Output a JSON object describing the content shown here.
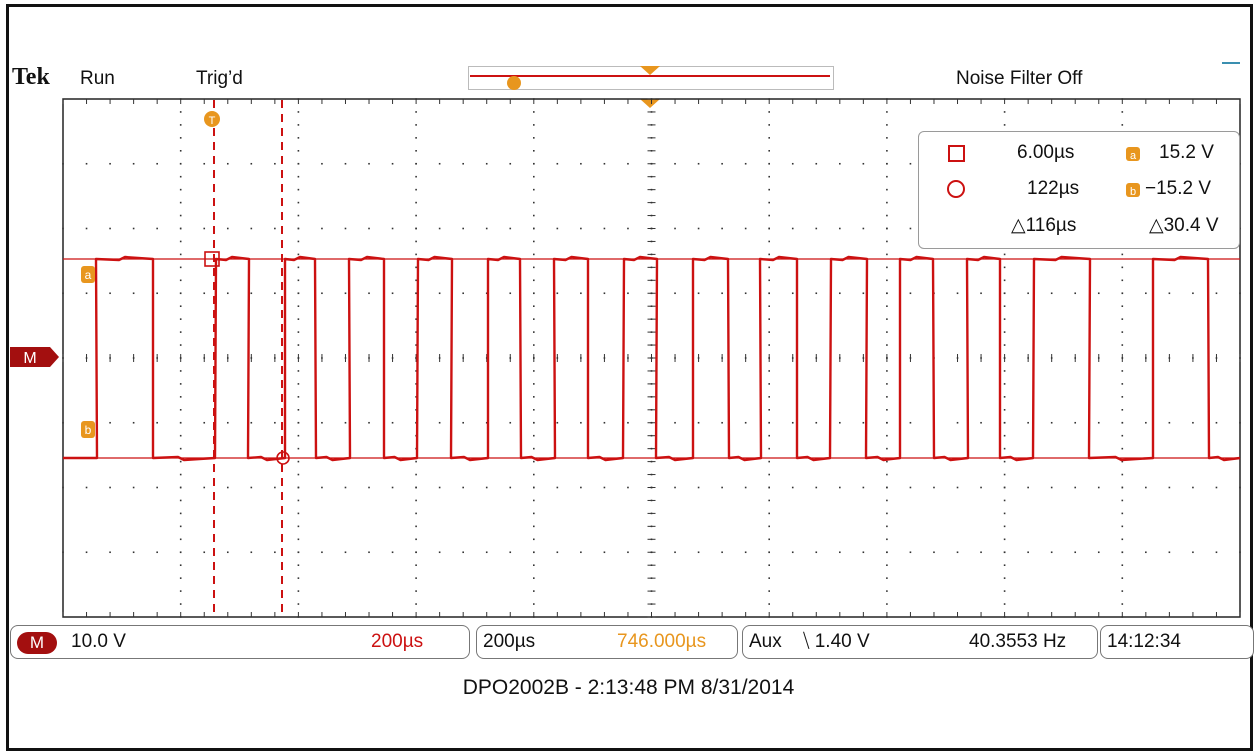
{
  "header": {
    "brand": "Tek",
    "run_state": "Run",
    "trigger_state": "Trig’d",
    "noise_filter": "Noise Filter Off",
    "trigger_marker": "T"
  },
  "waveform": {
    "channel_color": "#cc1111",
    "high_level_v": 15.2,
    "low_level_v": -15.2,
    "cursor_a_label": "a",
    "cursor_b_label": "b",
    "ref_marker": "M"
  },
  "measurements": {
    "cursor1_time": "6.00µs",
    "cursor2_time": "122µs",
    "delta_time": "△116µs",
    "cursor_a_volts": "15.2 V",
    "cursor_b_volts": "−15.2 V",
    "delta_volts": "△30.4 V",
    "cursor_a_label": "a",
    "cursor_b_label": "b"
  },
  "footer": {
    "channel_badge": "M",
    "volts_div": "10.0 V",
    "time_div_left": "200µs",
    "time_div": "200µs",
    "position": "746.000µs",
    "trigger_source": "Aux",
    "trigger_slope_icon": "falling-edge-icon",
    "trigger_level": "⧹ 1.40 V",
    "frequency": "40.3553 Hz",
    "clock": "14:12:34",
    "accent_color": "#e8961e"
  },
  "caption": "DPO2002B - 2:13:48 PM   8/31/2014"
}
